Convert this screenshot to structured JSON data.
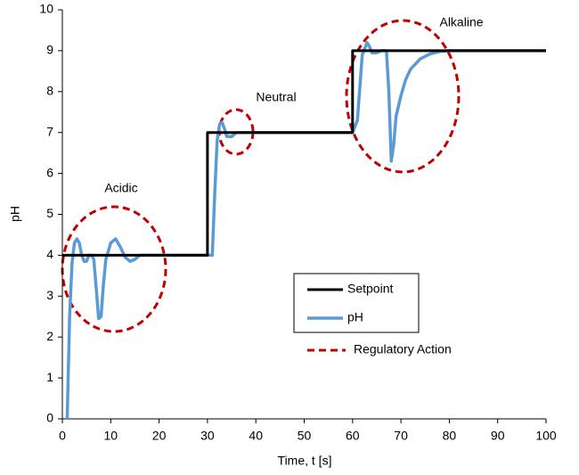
{
  "chart_data": {
    "type": "line",
    "xlabel": "Time, t [s]",
    "ylabel": "pH",
    "xlim": [
      0,
      100
    ],
    "xticks": [
      0,
      10,
      20,
      30,
      40,
      50,
      60,
      70,
      80,
      90,
      100
    ],
    "ylim": [
      0,
      10
    ],
    "yticks": [
      0,
      1,
      2,
      3,
      4,
      5,
      6,
      7,
      8,
      9,
      10
    ],
    "grid": false,
    "annotations": [
      "Acidic",
      "Neutral",
      "Alkaline"
    ],
    "regulatory_action": {
      "label": "Regulatory Action",
      "color": "#c00000"
    },
    "series": [
      {
        "name": "Setpoint",
        "color": "#000000",
        "x": [
          0,
          30,
          30,
          60,
          60,
          100
        ],
        "values": [
          4,
          4,
          7,
          7,
          9,
          9
        ]
      },
      {
        "name": "pH",
        "color": "#5b9bd5",
        "x": [
          1,
          1.5,
          2,
          2.5,
          3,
          3.5,
          4,
          4.5,
          5,
          5.5,
          6,
          6.5,
          7,
          7.5,
          8,
          8.5,
          9,
          10,
          11,
          12,
          13,
          14,
          15,
          16,
          18,
          20,
          25,
          30,
          31,
          31.5,
          32,
          32.5,
          33,
          33.5,
          34,
          35,
          36,
          40,
          50,
          60,
          61,
          62,
          63,
          63.5,
          64,
          65,
          66,
          67,
          67.5,
          68,
          68.5,
          69,
          70,
          71,
          72,
          74,
          76,
          78,
          80,
          90,
          100
        ],
        "values": [
          0,
          2.5,
          3.8,
          4.3,
          4.4,
          4.3,
          4.0,
          3.85,
          3.85,
          4.0,
          4.0,
          3.9,
          3.2,
          2.45,
          2.5,
          3.3,
          3.9,
          4.3,
          4.4,
          4.2,
          3.95,
          3.85,
          3.9,
          4.0,
          4.0,
          4.0,
          4.0,
          4.0,
          4.0,
          5.5,
          6.8,
          7.2,
          7.25,
          7.1,
          6.9,
          6.9,
          7.0,
          7.0,
          7.0,
          7.0,
          7.3,
          8.9,
          9.2,
          9.1,
          8.95,
          8.95,
          9.0,
          9.0,
          8.0,
          6.3,
          6.7,
          7.4,
          7.9,
          8.3,
          8.55,
          8.8,
          8.92,
          8.98,
          9.0,
          9.0,
          9.0
        ]
      }
    ]
  }
}
